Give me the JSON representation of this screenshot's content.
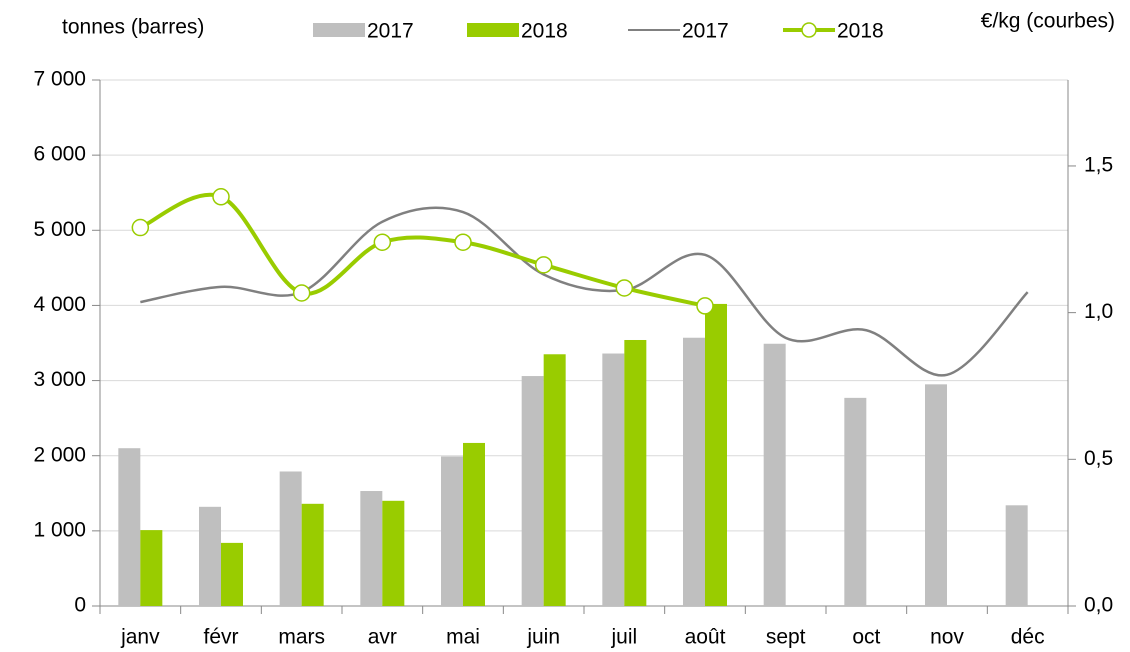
{
  "chart_data": {
    "type": "bar",
    "y_label": "tonnes (barres)",
    "y2_label": "€/kg (courbes)",
    "categories": [
      "janv",
      "févr",
      "mars",
      "avr",
      "mai",
      "juin",
      "juil",
      "août",
      "sept",
      "oct",
      "nov",
      "déc"
    ],
    "series": [
      {
        "name": "2017",
        "type": "bar",
        "color": "#bfbfbf",
        "values": [
          2100,
          1320,
          1790,
          1530,
          1990,
          3060,
          3360,
          3570,
          3490,
          2770,
          2950,
          1340
        ]
      },
      {
        "name": "2018",
        "type": "bar",
        "color": "#99cc00",
        "values": [
          1010,
          840,
          1360,
          1400,
          2170,
          3350,
          3540,
          4020,
          null,
          null,
          null,
          null
        ]
      },
      {
        "name": "2017",
        "type": "line",
        "axis": "y2",
        "color": "#808080",
        "values": [
          1.036,
          1.088,
          1.07,
          1.31,
          1.343,
          1.13,
          1.077,
          1.197,
          0.914,
          0.94,
          0.788,
          1.07
        ]
      },
      {
        "name": "2018",
        "type": "line",
        "axis": "y2",
        "color": "#99cc00",
        "markers": true,
        "values": [
          1.29,
          1.395,
          1.067,
          1.24,
          1.24,
          1.163,
          1.084,
          1.023,
          null,
          null,
          null,
          null
        ]
      }
    ],
    "ylim": [
      0,
      7000
    ],
    "yticks": [
      0,
      {
        "value": 1000,
        "label": "1 000"
      },
      {
        "value": 2000,
        "label": "2 000"
      },
      {
        "value": 3000,
        "label": "3 000"
      },
      {
        "value": 4000,
        "label": "4 000"
      },
      {
        "value": 5000,
        "label": "5 000"
      },
      {
        "value": 6000,
        "label": "6 000"
      },
      {
        "value": 7000,
        "label": "7 000"
      }
    ],
    "y2lim": [
      0,
      1.793
    ],
    "y2ticks": [
      {
        "value": 0,
        "label": "0,0"
      },
      {
        "value": 0.5,
        "label": "0,5"
      },
      {
        "value": 1.0,
        "label": "1,0"
      },
      {
        "value": 1.5,
        "label": "1,5"
      }
    ],
    "grid": true,
    "legend": "top"
  }
}
